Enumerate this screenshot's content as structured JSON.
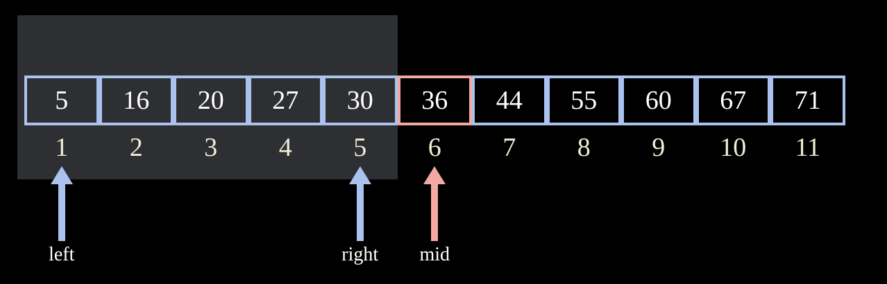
{
  "array": {
    "values": [
      "5",
      "16",
      "20",
      "27",
      "30",
      "36",
      "44",
      "55",
      "60",
      "67",
      "71"
    ],
    "indices": [
      "1",
      "2",
      "3",
      "4",
      "5",
      "6",
      "7",
      "8",
      "9",
      "10",
      "11"
    ],
    "highlighted_index_range": [
      1,
      5
    ],
    "mid_index": 6
  },
  "pointers": [
    {
      "label": "left",
      "index": 1,
      "color": "#a9c3ee"
    },
    {
      "label": "right",
      "index": 5,
      "color": "#a9c3ee"
    },
    {
      "label": "mid",
      "index": 6,
      "color": "#f3a8a1"
    }
  ],
  "colors": {
    "background": "#000000",
    "highlight": "#2e2f32",
    "cell_border": "#a9c3ee",
    "mid_border": "#f3a8a1",
    "value_text": "#ffffff",
    "index_text": "#efeed4"
  }
}
